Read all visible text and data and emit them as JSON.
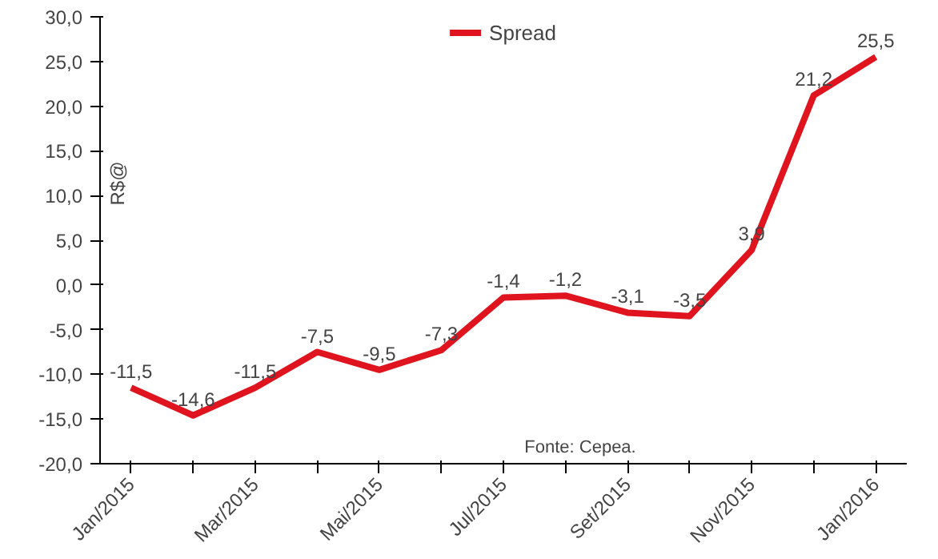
{
  "chart_data": {
    "type": "line",
    "categories": [
      "Jan/2015",
      null,
      "Mar/2015",
      null,
      "Mai/2015",
      null,
      "Jul/2015",
      null,
      "Set/2015",
      null,
      "Nov/2015",
      null,
      "Jan/2016"
    ],
    "series": [
      {
        "name": "Spread",
        "color": "#e0141e",
        "values": [
          -11.5,
          -14.6,
          -11.5,
          -7.5,
          -9.5,
          -7.3,
          -1.4,
          -1.2,
          -3.1,
          -3.5,
          3.9,
          21.2,
          25.5
        ],
        "value_labels": [
          "-11,5",
          "-14,6",
          "-11,5",
          "-7,5",
          "-9,5",
          "-7,3",
          "-1,4",
          "-1,2",
          "-3,1",
          "-3,5",
          "3,9",
          "21,2",
          "25,5"
        ]
      }
    ],
    "ylabel": "R$@",
    "ylim": [
      -20,
      30
    ],
    "yticks": [
      {
        "value": -20,
        "label": "-20,0"
      },
      {
        "value": -15,
        "label": "-15,0"
      },
      {
        "value": -10,
        "label": "-10,0"
      },
      {
        "value": -5,
        "label": "-5,0"
      },
      {
        "value": 0,
        "label": "0,0"
      },
      {
        "value": 5,
        "label": "5,0"
      },
      {
        "value": 10,
        "label": "10,0"
      },
      {
        "value": 15,
        "label": "15,0"
      },
      {
        "value": 20,
        "label": "20,0"
      },
      {
        "value": 25,
        "label": "25,0"
      },
      {
        "value": 30,
        "label": "30,0"
      }
    ],
    "annotations": [
      "Fonte: Cepea."
    ],
    "legend": "top",
    "grid": false,
    "line_style": "solid"
  }
}
